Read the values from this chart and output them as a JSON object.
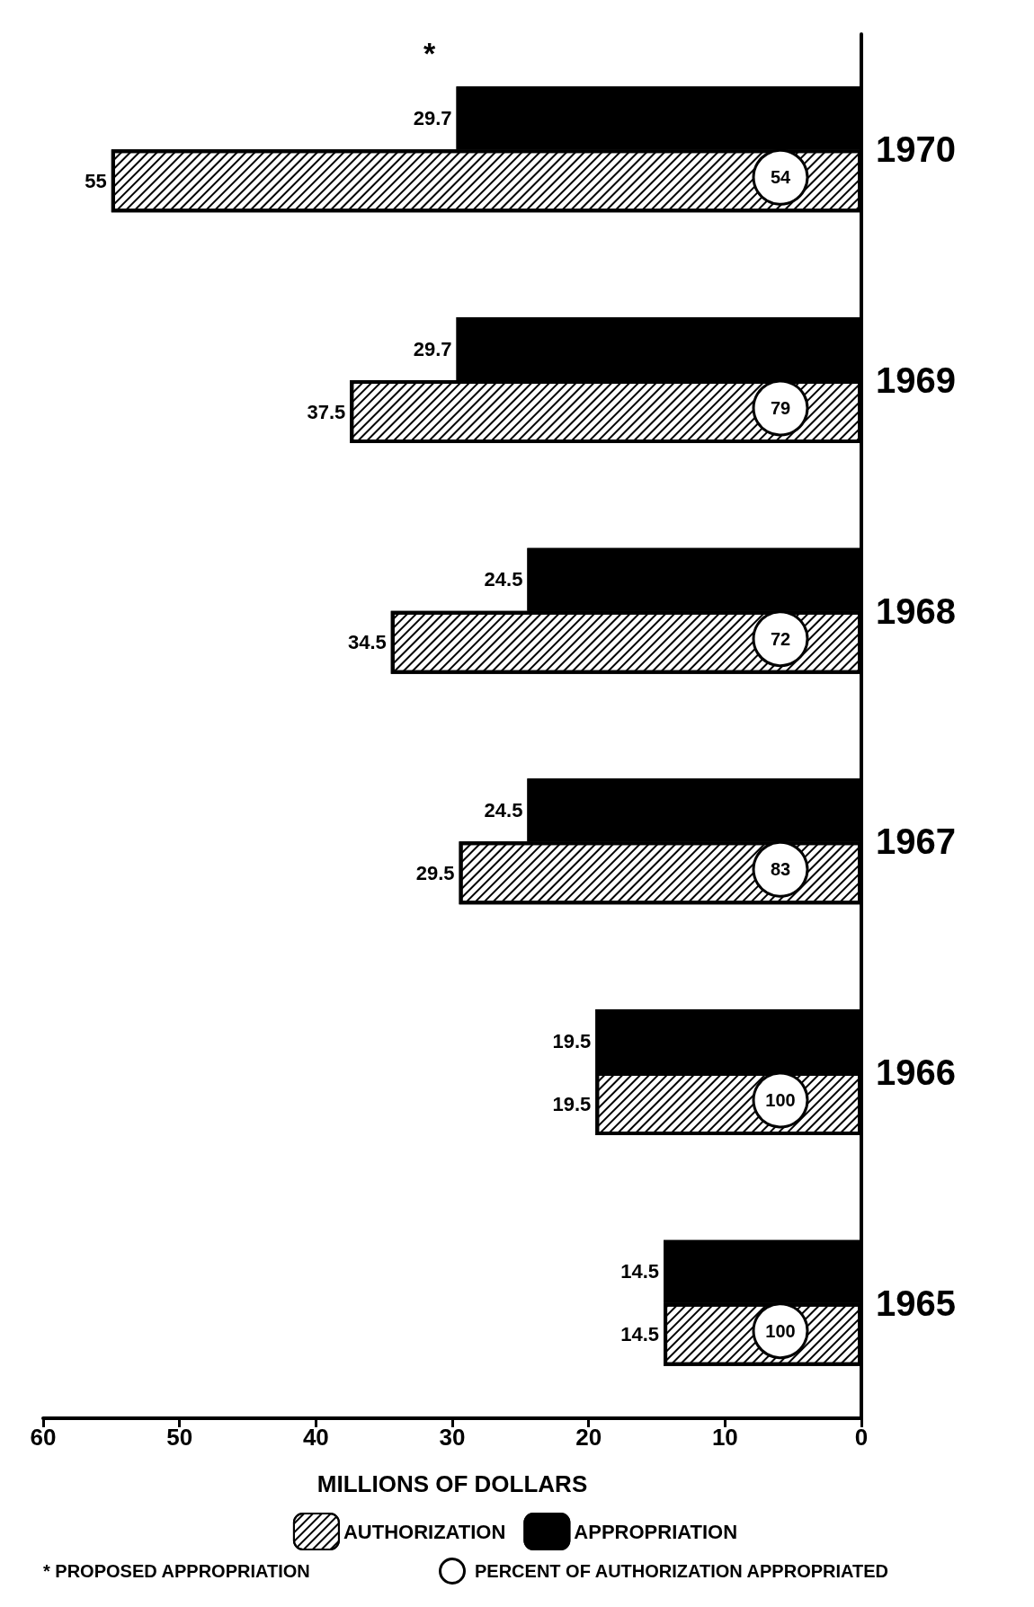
{
  "chart_data": {
    "type": "bar",
    "orientation": "horizontal",
    "categories": [
      "1970",
      "1969",
      "1968",
      "1967",
      "1966",
      "1965"
    ],
    "series": [
      {
        "name": "AUTHORIZATION",
        "color": "#ffffff",
        "values": [
          55.0,
          37.5,
          34.5,
          29.5,
          19.5,
          14.5
        ]
      },
      {
        "name": "APPROPRIATION",
        "color": "#000000",
        "values": [
          29.7,
          29.7,
          24.5,
          24.5,
          19.5,
          14.5
        ]
      }
    ],
    "xlabel": "MILLIONS OF DOLLARS",
    "xlim": [
      60,
      0
    ],
    "xticks": [
      0,
      10,
      20,
      30,
      40,
      50,
      60
    ],
    "data_labels": true,
    "grid": false,
    "legend": "bottom",
    "annotations": [
      {
        "text": "54",
        "y": "1970"
      },
      {
        "text": "79",
        "y": "1969"
      },
      {
        "text": "72",
        "y": "1968"
      },
      {
        "text": "83",
        "y": "1967"
      },
      {
        "text": "100",
        "y": "1966"
      },
      {
        "text": "100",
        "y": "1965"
      },
      {
        "text": "*",
        "x": 29.7,
        "y": "1970"
      },
      "* PROPOSED APPROPRIATION",
      "PERCENT OF AUTHORIZATION APPROPRIATED"
    ]
  }
}
